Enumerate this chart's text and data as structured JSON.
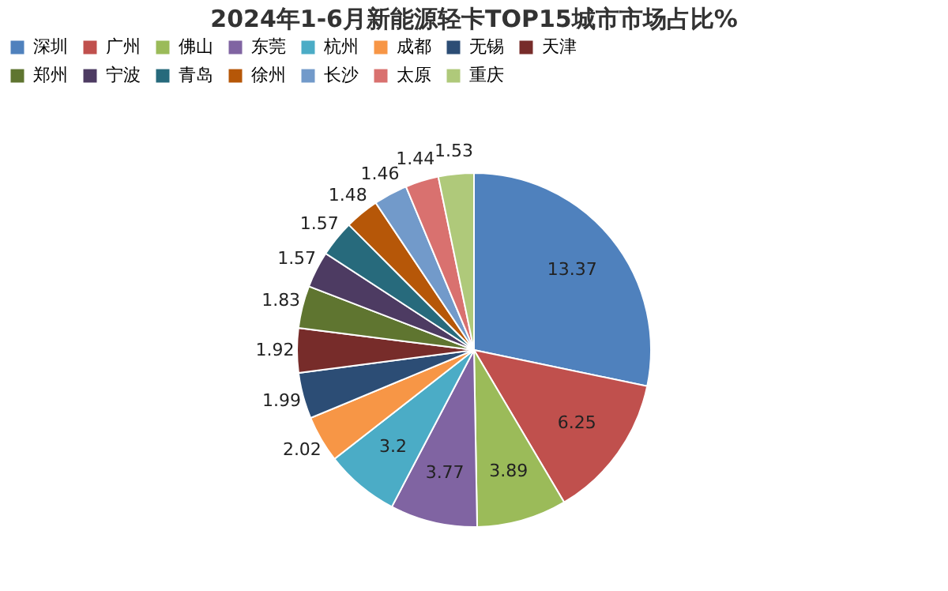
{
  "chart_data": {
    "type": "pie",
    "title": "2024年1-6月新能源轻卡TOP15城市市场占比%",
    "categories": [
      "深圳",
      "广州",
      "佛山",
      "东莞",
      "杭州",
      "成都",
      "无锡",
      "天津",
      "郑州",
      "宁波",
      "青岛",
      "徐州",
      "长沙",
      "太原",
      "重庆"
    ],
    "values": [
      13.37,
      6.25,
      3.89,
      3.77,
      3.2,
      2.02,
      1.99,
      1.92,
      1.83,
      1.57,
      1.57,
      1.48,
      1.46,
      1.44,
      1.53
    ],
    "colors": [
      "#4f81bd",
      "#c0504d",
      "#9bbb59",
      "#8064a2",
      "#4bacc6",
      "#f79646",
      "#2c4d75",
      "#772c2a",
      "#5f7530",
      "#4d3b62",
      "#276a7c",
      "#b65708",
      "#729aca",
      "#d9716f",
      "#afc97a"
    ],
    "data_labels": true,
    "legend": "top"
  }
}
